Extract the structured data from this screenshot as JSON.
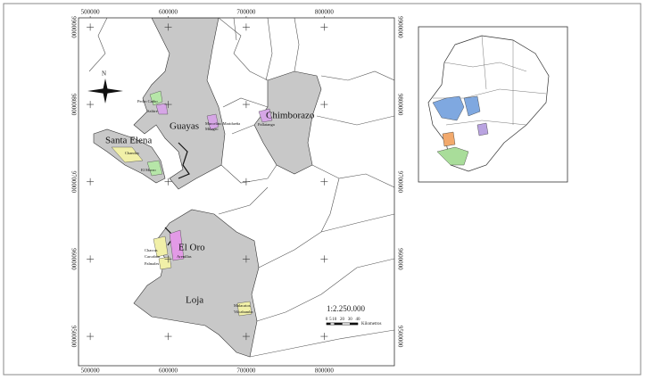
{
  "map": {
    "x_labels": [
      500000,
      600000,
      700000,
      800000
    ],
    "y_labels": [
      9900000,
      9800000,
      9700000,
      9600000,
      9500000
    ],
    "xlim": [
      485000,
      890000
    ],
    "ylim": [
      9462000,
      9912000
    ],
    "provinces": [
      "Guayas",
      "Santa Elena",
      "Chimborazo",
      "El Oro",
      "Loja"
    ],
    "places": [
      "Pedro Carbo",
      "Salitre",
      "Marcelino Maridueña",
      "Milagro",
      "Pallatanga",
      "Chanduy",
      "El Morro",
      "Chacras",
      "Carcabón",
      "Palmales",
      "Arenillas",
      "Malacatos",
      "Vilcabamba"
    ],
    "north": "N",
    "scale": "1:2.250.000",
    "scale_bar": {
      "ticks": [
        0,
        5,
        10,
        20,
        30,
        40
      ],
      "unit": "Kilometros"
    }
  }
}
